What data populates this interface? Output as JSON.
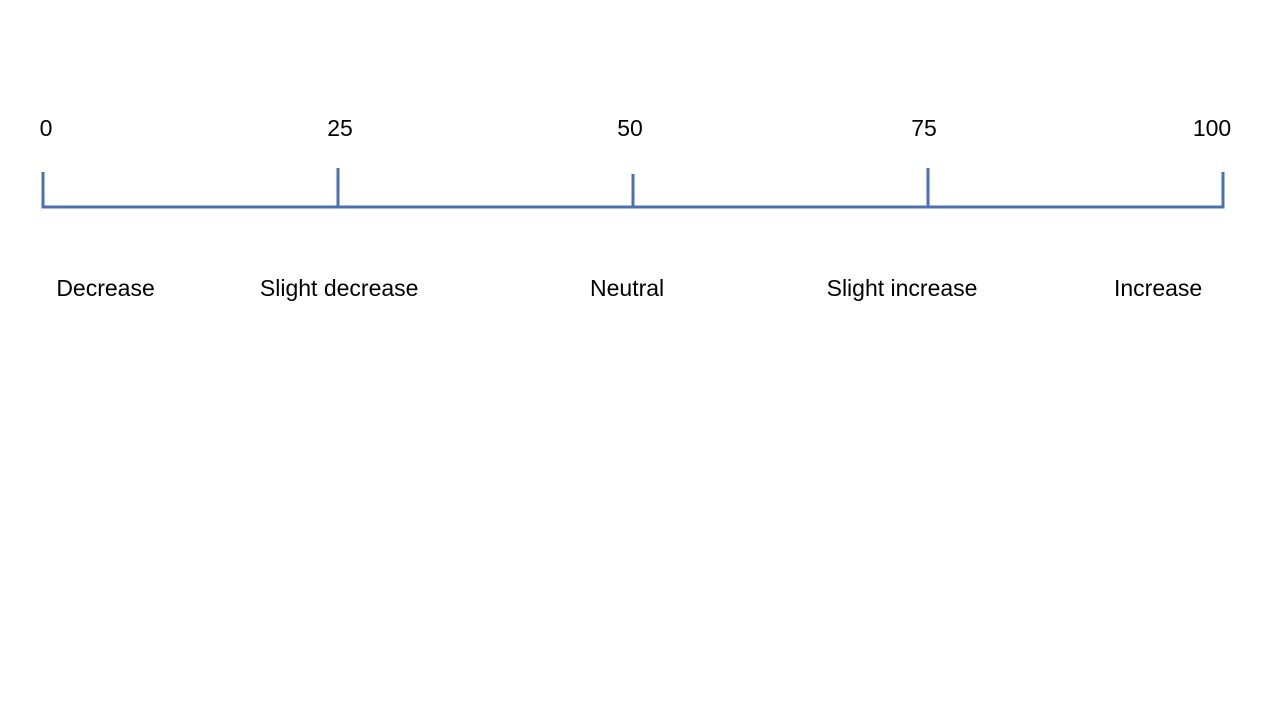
{
  "scale": {
    "min": 0,
    "max": 100,
    "line_color": "#4a70b0",
    "ticks": [
      {
        "value": 0,
        "label": "0"
      },
      {
        "value": 25,
        "label": "25"
      },
      {
        "value": 50,
        "label": "50"
      },
      {
        "value": 75,
        "label": "75"
      },
      {
        "value": 100,
        "label": "100"
      }
    ],
    "categories": [
      {
        "label": "Decrease",
        "value": 5.3
      },
      {
        "label": "Slight decrease",
        "value": 25.1
      },
      {
        "value": 49.5,
        "label": "Neutral"
      },
      {
        "label": "Slight increase",
        "value": 72.8
      },
      {
        "label": "Increase",
        "value": 94.5
      }
    ]
  }
}
